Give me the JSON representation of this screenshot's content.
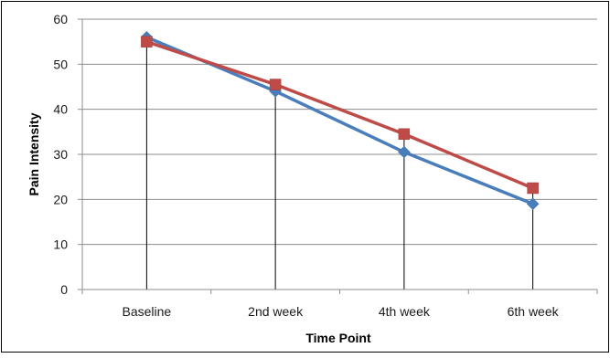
{
  "chart_data": {
    "type": "line",
    "title": "",
    "xlabel": "Time Point",
    "ylabel": "Pain Intensity",
    "categories": [
      "Baseline",
      "2nd week",
      "4th week",
      "6th week"
    ],
    "ylim": [
      0,
      60
    ],
    "yticks": [
      0,
      10,
      20,
      30,
      40,
      50,
      60
    ],
    "grid": true,
    "drop_lines": true,
    "legend": "none",
    "series": [
      {
        "color": "#4a7ebb",
        "marker": "diamond",
        "values": [
          56,
          44,
          30.5,
          19
        ]
      },
      {
        "color": "#be4b48",
        "marker": "square",
        "values": [
          55,
          45.5,
          34.5,
          22.5
        ]
      }
    ]
  }
}
